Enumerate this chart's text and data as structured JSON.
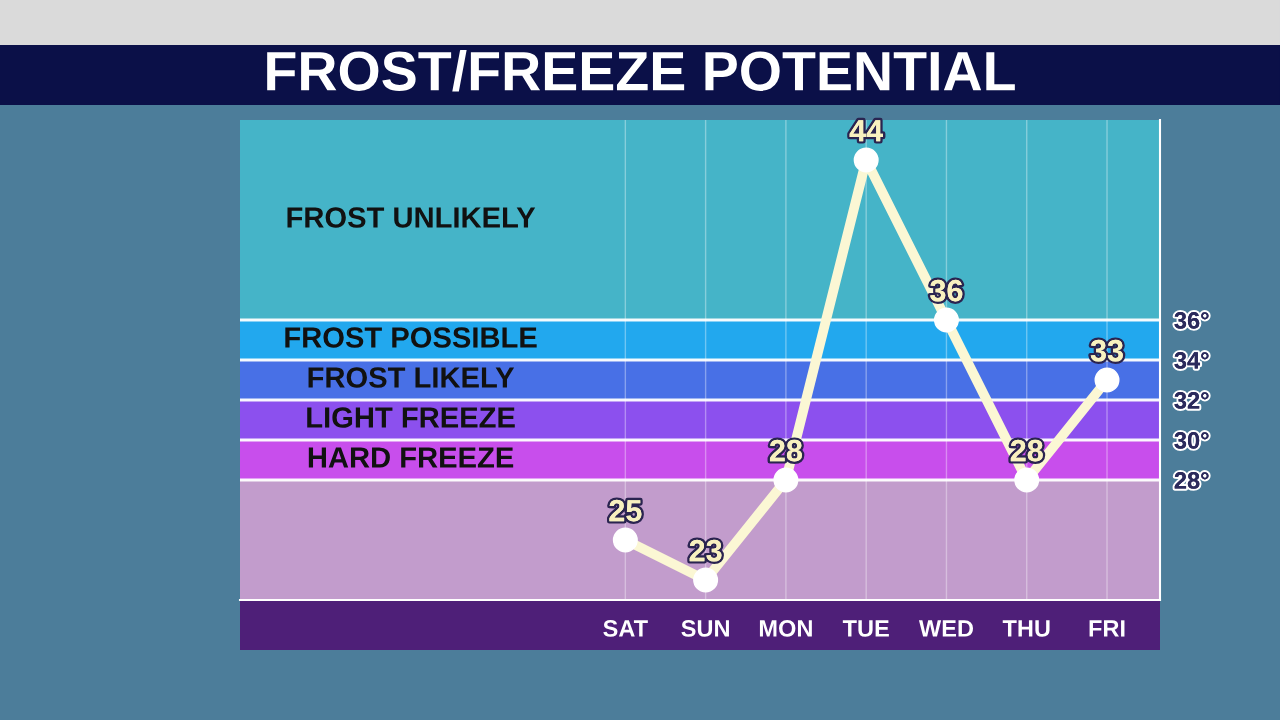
{
  "chart_data": {
    "type": "line",
    "title": "FROST/FREEZE POTENTIAL",
    "categories": [
      "SAT",
      "SUN",
      "MON",
      "TUE",
      "WED",
      "THU",
      "FRI"
    ],
    "values": [
      25,
      23,
      28,
      44,
      36,
      28,
      33
    ],
    "color": "#fbf7d4",
    "marker": "circle",
    "line_style": "solid",
    "data_labels": true,
    "ylim": [
      22,
      46
    ],
    "yticks": [
      {
        "value": 28,
        "label": "28°"
      },
      {
        "value": 30,
        "label": "30°"
      },
      {
        "value": 32,
        "label": "32°"
      },
      {
        "value": 34,
        "label": "34°"
      },
      {
        "value": 36,
        "label": "36°"
      }
    ],
    "grid": true,
    "bands": [
      {
        "axis": "y",
        "from": 36,
        "to": 46,
        "label": "FROST UNLIKELY",
        "color": "#45b4c8"
      },
      {
        "axis": "y",
        "from": 34,
        "to": 36,
        "label": "FROST POSSIBLE",
        "color": "#22a8ee"
      },
      {
        "axis": "y",
        "from": 32,
        "to": 34,
        "label": "FROST LIKELY",
        "color": "#4870e6"
      },
      {
        "axis": "y",
        "from": 30,
        "to": 32,
        "label": "LIGHT FREEZE",
        "color": "#8c50ee"
      },
      {
        "axis": "y",
        "from": 28,
        "to": 30,
        "label": "HARD FREEZE",
        "color": "#c84eec"
      },
      {
        "axis": "y",
        "from": 22,
        "to": 28,
        "color": "#c29ccc"
      }
    ]
  }
}
